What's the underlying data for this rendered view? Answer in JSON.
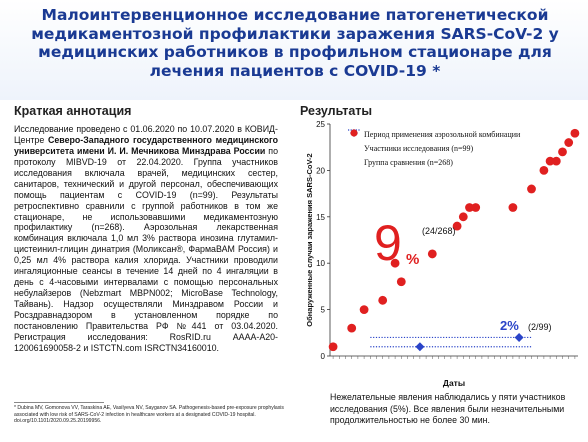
{
  "header": {
    "title": "Малоинтервенционное исследование патогенетической медикаментозной профилактики заражения SARS-CoV-2 у медицинских работников в профильном стационаре для лечения пациентов с COVID-19",
    "asterisk": "*"
  },
  "abstract": {
    "heading": "Краткая аннотация",
    "p1": "Исследование проведено с 01.06.2020 по 10.07.2020 в КОВИД-Центре ",
    "org": "Северо-Западного государственного медицинского университета имени И. И. Мечникова Минздрава России",
    "p2": " по протоколу MIBVD-19 от 22.04.2020. Группа участников исследования включала врачей, медицинских сестер, санитаров, технический и другой персонал, обеспечивающих помощь пациентам с COVID-19 (n=99). Результаты ретроспективно сравнили с группой работников в том же стационаре, не использовавшими медикаментозную профилактику (n=268). Аэрозольная лекарственная комбинация включала 1,0 мл 3% раствора инозина глутамил-цистеинил-глицин динатрия (Моликсан®, ФармаВАМ Россия) и 0,25 мл 4% раствора калия хлорида. Участники проводили ингаляционные сеансы в течение 14 дней по 4 ингаляции в день с 4-часовыми интервалами с помощью персональных небулайзеров (Nebzmart MBPN002; MicroBase Technology, Тайвань). Надзор осуществляли Минздравом России и Росздравнадзором в установленном порядке по постановлению Правительства РФ №441 от 03.04.2020. Регистрация исследования: RosRID.ru АААА-А20-120061690058-2 и ISTCTN.com ISRCTN34160010."
  },
  "footnote": "* Dubina MV, Gomonova VV, Taraskina AE, Vasilyeva NV, Sayganov SA. Pathogenesis-based pre-exposure prophylaxis associated with low risk of SARS-CoV-2 infection in healthcare workers at a designated COVID-19 hospital. doi.org/10.1101/2020.09.25.20199956.",
  "results": {
    "heading": "Результаты",
    "note": "Нежелательные явления наблюдались у пяти участников исследования (5%). Все явления были незначительными продолжительностью не более 30 мин."
  },
  "chart_data": {
    "type": "scatter",
    "xlabel": "Даты",
    "ylabel": "Обнаруженные случаи заражения SARS-CoV-2",
    "ylim": [
      0,
      25
    ],
    "yticks": [
      0,
      5,
      10,
      15,
      20,
      25
    ],
    "x_tick_count": 40,
    "grid": false,
    "legend_position": "top-left",
    "legend": [
      {
        "label": "Период применения аэрозольной комбинации",
        "style": "dotted-line",
        "color": "#2a44c8"
      },
      {
        "label": "Участники исследования (n=99)",
        "style": "diamond",
        "color": "#2a44c8"
      },
      {
        "label": "Группа сравнения (n=268)",
        "style": "circle",
        "color": "#e02020"
      }
    ],
    "series": [
      {
        "name": "Группа сравнения (n=268)",
        "color": "#e02020",
        "x": [
          1,
          4,
          6,
          9,
          11,
          12,
          17,
          21,
          22,
          23,
          24,
          30,
          33,
          35,
          36,
          37,
          38,
          39,
          40
        ],
        "y": [
          1,
          3,
          5,
          6,
          10,
          8,
          11,
          14,
          15,
          16,
          16,
          16,
          18,
          20,
          21,
          21,
          22,
          23,
          24
        ]
      },
      {
        "name": "Участники исследования (n=99)",
        "color": "#2a44c8",
        "x": [
          15,
          31
        ],
        "y": [
          1,
          2
        ]
      }
    ],
    "period_lines": [
      {
        "x_start": 7,
        "x_end": 33,
        "y": 1
      },
      {
        "x_start": 7,
        "x_end": 33,
        "y": 2
      }
    ],
    "annotations": [
      {
        "text": "9",
        "color": "#e02020"
      },
      {
        "text": "%",
        "color": "#e02020"
      },
      {
        "text": "(24/268)",
        "color": "#111111"
      },
      {
        "text": "2%",
        "color": "#2a44c8"
      },
      {
        "text": "(2/99)",
        "color": "#111111"
      }
    ]
  }
}
